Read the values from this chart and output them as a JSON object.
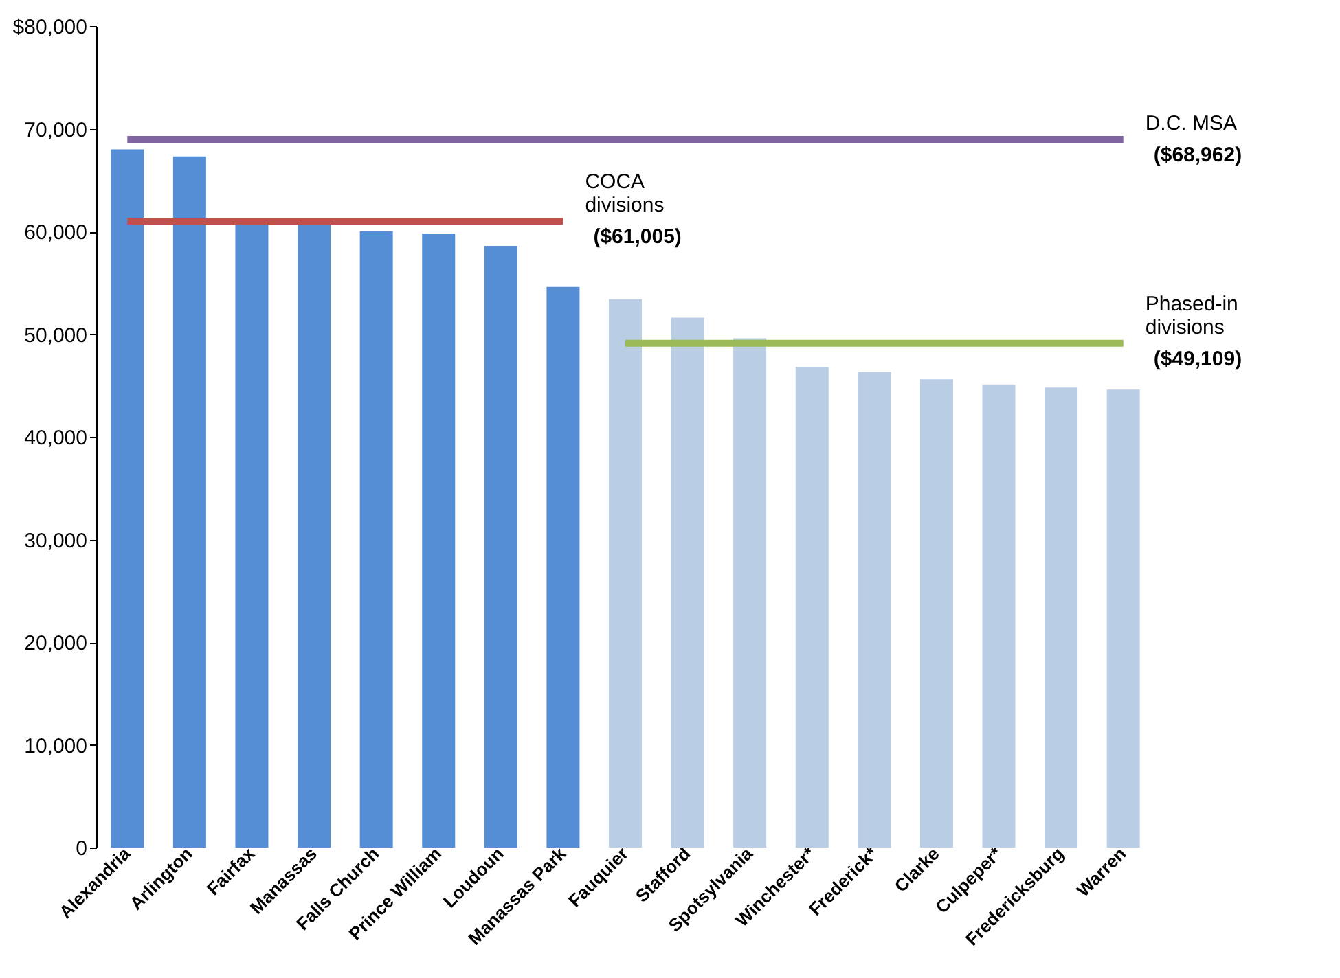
{
  "chart_data": {
    "type": "bar",
    "categories": [
      "Alexandria",
      "Arlington",
      "Fairfax",
      "Manassas",
      "Falls Church",
      "Prince William",
      "Loudoun",
      "Manassas Park",
      "Fauquier",
      "Stafford",
      "Spotsylvania",
      "Winchester*",
      "Frederick*",
      "Clarke",
      "Culpeper*",
      "Fredericksburg",
      "Warren"
    ],
    "values": [
      68000,
      67300,
      61100,
      61000,
      60000,
      59800,
      58600,
      54600,
      53400,
      51600,
      49600,
      46800,
      46300,
      45600,
      45100,
      44800,
      44600
    ],
    "colors": [
      "#558ed5",
      "#558ed5",
      "#558ed5",
      "#558ed5",
      "#558ed5",
      "#558ed5",
      "#558ed5",
      "#558ed5",
      "#b9cde5",
      "#b9cde5",
      "#b9cde5",
      "#b9cde5",
      "#b9cde5",
      "#b9cde5",
      "#b9cde5",
      "#b9cde5",
      "#b9cde5"
    ],
    "series": [
      {
        "type": "line",
        "name": "D.C. MSA",
        "color": "#8064a2",
        "values": [
          68962,
          68962,
          68962,
          68962,
          68962,
          68962,
          68962,
          68962,
          68962,
          68962,
          68962,
          68962,
          68962,
          68962,
          68962,
          68962,
          68962
        ],
        "value_labels": [
          null,
          null,
          null,
          null,
          null,
          null,
          null,
          null,
          null,
          null,
          null,
          null,
          null,
          null,
          null,
          null,
          "($68,962)"
        ]
      },
      {
        "type": "line",
        "name": "COCA divisions",
        "color": "#c0504d",
        "values": [
          61005,
          61005,
          61005,
          61005,
          61005,
          61005,
          61005,
          61005,
          null,
          null,
          null,
          null,
          null,
          null,
          null,
          null,
          null
        ],
        "value_labels": [
          null,
          null,
          null,
          null,
          null,
          null,
          null,
          "($61,005)",
          null,
          null,
          null,
          null,
          null,
          null,
          null,
          null,
          null
        ]
      },
      {
        "type": "line",
        "name": "Phased-in divisions",
        "color": "#9bbb59",
        "values": [
          null,
          null,
          null,
          null,
          null,
          null,
          null,
          null,
          49109,
          49109,
          49109,
          49109,
          49109,
          49109,
          49109,
          49109,
          49109
        ],
        "value_labels": [
          null,
          null,
          null,
          null,
          null,
          null,
          null,
          null,
          null,
          null,
          null,
          null,
          null,
          null,
          null,
          null,
          "($49,109)"
        ]
      }
    ],
    "ylim": [
      0,
      80000
    ],
    "yticks": [
      0,
      {
        "value": 10000,
        "label": "10,000"
      },
      {
        "value": 20000,
        "label": "20,000"
      },
      {
        "value": 30000,
        "label": "30,000"
      },
      {
        "value": 40000,
        "label": "40,000"
      },
      {
        "value": 50000,
        "label": "50,000"
      },
      {
        "value": 60000,
        "label": "60,000"
      },
      {
        "value": 70000,
        "label": "70,000"
      },
      {
        "value": 80000,
        "label": "$80,000"
      }
    ],
    "grid": false
  }
}
